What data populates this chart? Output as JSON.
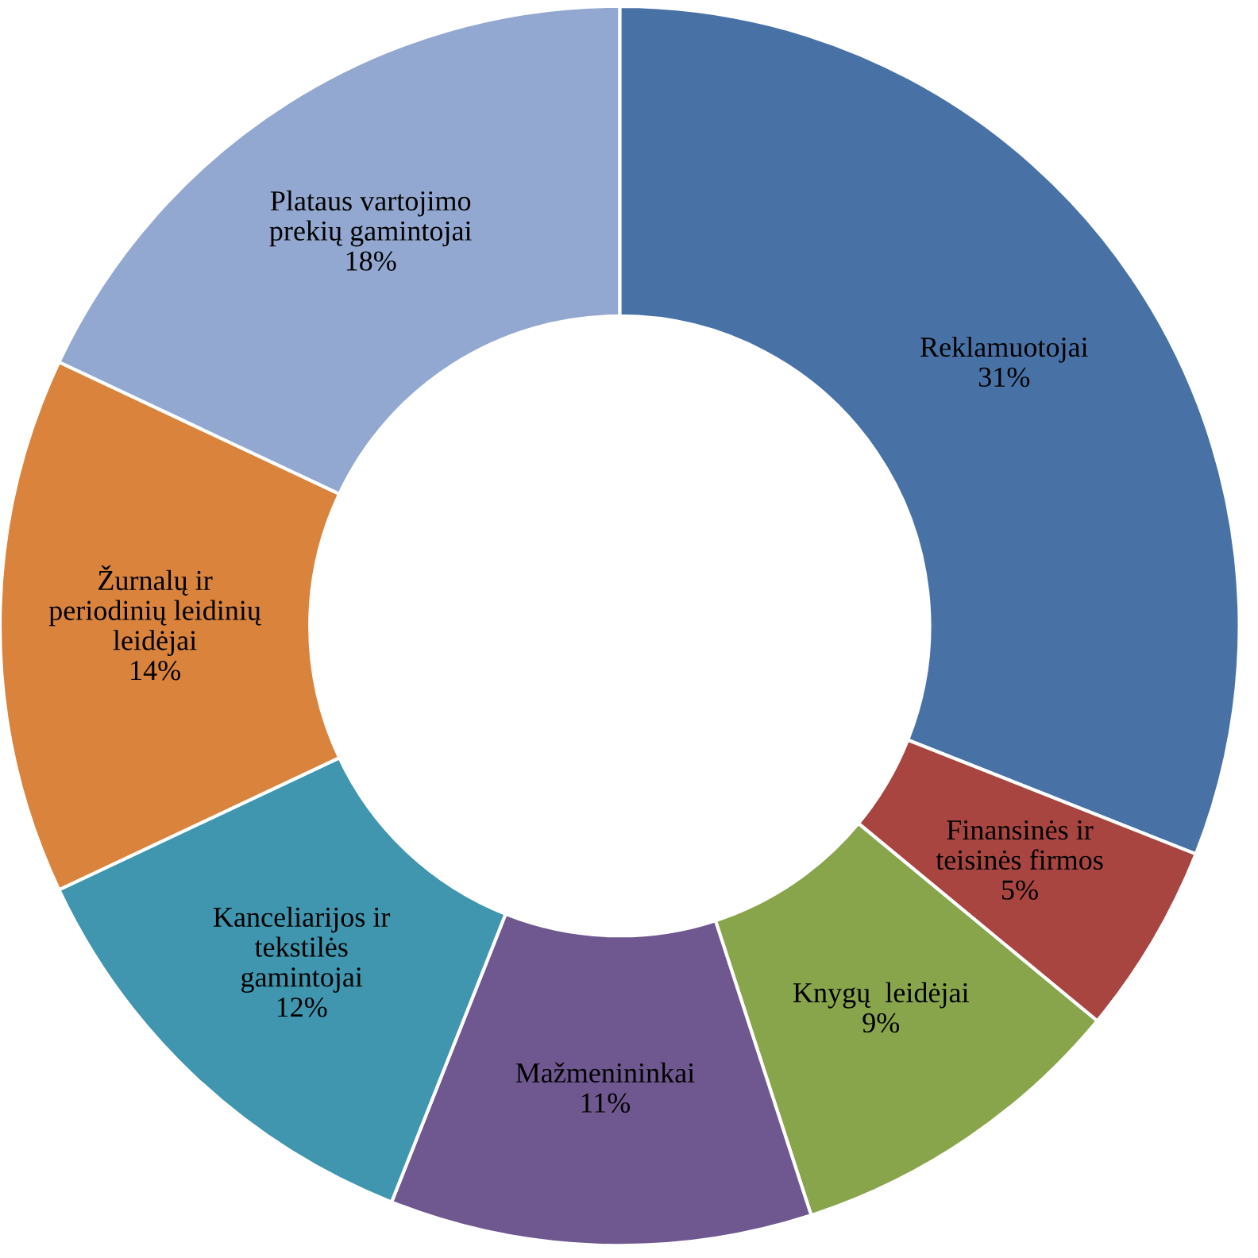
{
  "chart_data": {
    "type": "donut",
    "categories": [
      "Reklamuotojai",
      "Finansinės ir\nteisinės firmos",
      "Knygų  leidėjai",
      "Mažmenininkai",
      "Kanceliarijos ir\ntekstilės\ngamintojai",
      "Žurnalų ir\nperiodinių leidinių\nleidėjai",
      "Plataus vartojimo\nprekių gamintojai"
    ],
    "values": [
      31,
      5,
      9,
      11,
      12,
      14,
      18
    ],
    "value_labels": [
      "31%",
      "5%",
      "9%",
      "11%",
      "12%",
      "14%",
      "18%"
    ],
    "colors": [
      "#4872a6",
      "#a84541",
      "#88a54b",
      "#6f578f",
      "#3f96ae",
      "#d9833d",
      "#93a8d0"
    ],
    "legend": false
  }
}
